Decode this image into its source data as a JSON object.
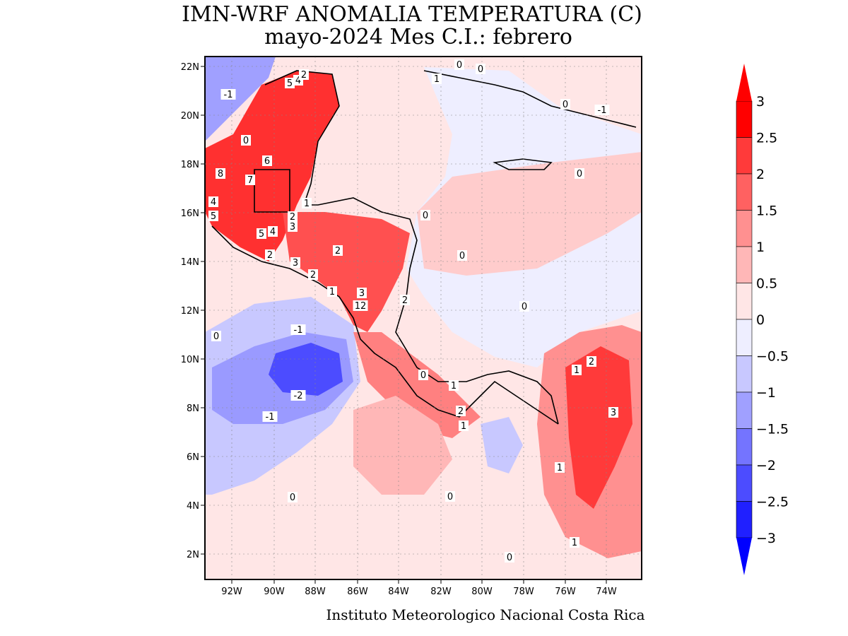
{
  "title": {
    "line1": "IMN-WRF  ANOMALIA TEMPERATURA (C)",
    "line2": "mayo-2024 Mes C.I.: febrero"
  },
  "credit": "Instituto Meteorologico Nacional Costa Rica",
  "map": {
    "lon_labels": [
      "92W",
      "90W",
      "88W",
      "86W",
      "84W",
      "82W",
      "80W",
      "78W",
      "76W",
      "74W"
    ],
    "lat_labels": [
      "22N",
      "20N",
      "18N",
      "16N",
      "14N",
      "12N",
      "10N",
      "8N",
      "6N",
      "4N",
      "2N"
    ],
    "contour_labels": [
      "-1",
      "5",
      "4",
      "2",
      "0",
      "1",
      "0",
      "0",
      "0",
      "6",
      "8",
      "7",
      "0",
      "1",
      "4",
      "5",
      "2",
      "3",
      "5",
      "4",
      "2",
      "3",
      "2",
      "0",
      "2",
      "3",
      "1",
      "3",
      "2",
      "12",
      "0",
      "0",
      "-1",
      "-1",
      "2",
      "0",
      "-2",
      "1",
      "0",
      "1",
      "3",
      "-1",
      "2",
      "1",
      "1",
      "0",
      "0",
      "1",
      "0"
    ]
  },
  "colorbar": {
    "labels": [
      "3",
      "2.5",
      "2",
      "1.5",
      "1",
      "0.5",
      "0",
      "-0.5",
      "-1",
      "-1.5",
      "-2",
      "-2.5",
      "-3"
    ],
    "colors": [
      "#ff0000",
      "#ff3a3a",
      "#ff6161",
      "#ff9090",
      "#ffb7b7",
      "#ffe6e6",
      "#eeeeff",
      "#c8c8ff",
      "#a0a0ff",
      "#7474ff",
      "#4c4cff",
      "#2020ff"
    ],
    "top_arrow_color": "#ff0000",
    "bottom_arrow_color": "#0000ff"
  },
  "colors": {
    "warm_strong": "#ff2020",
    "warm_mid": "#ff6b6b",
    "warm_light": "#ffb0b0",
    "warm_pale": "#ffe4e4",
    "cool_pale": "#e8e8ff",
    "cool_mid": "#9a9aff",
    "cool_strong": "#3a3aff"
  }
}
